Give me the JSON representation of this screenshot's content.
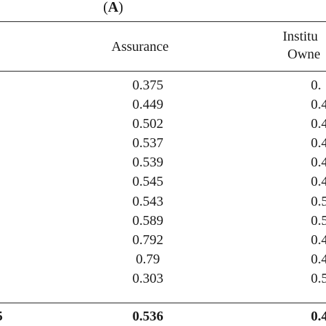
{
  "panel": {
    "open": "(",
    "letter": "A",
    "close": ")"
  },
  "columns": {
    "assurance": "Assurance",
    "institutional_line1": "Institu",
    "institutional_line2": "Owne"
  },
  "rows": [
    {
      "assurance": "0.375",
      "institutional": "0."
    },
    {
      "assurance": "0.449",
      "institutional": "0.4"
    },
    {
      "assurance": "0.502",
      "institutional": "0.4"
    },
    {
      "assurance": "0.537",
      "institutional": "0.4"
    },
    {
      "assurance": "0.539",
      "institutional": "0.4"
    },
    {
      "assurance": "0.545",
      "institutional": "0.4"
    },
    {
      "assurance": "0.543",
      "institutional": "0.5"
    },
    {
      "assurance": "0.589",
      "institutional": "0.5"
    },
    {
      "assurance": "0.792",
      "institutional": "0.4"
    },
    {
      "assurance": "0.79",
      "institutional": "0.4"
    },
    {
      "assurance": "0.303",
      "institutional": "0.5"
    }
  ],
  "total": {
    "label_fragment": "5",
    "assurance": "0.536",
    "institutional": "0.4"
  }
}
